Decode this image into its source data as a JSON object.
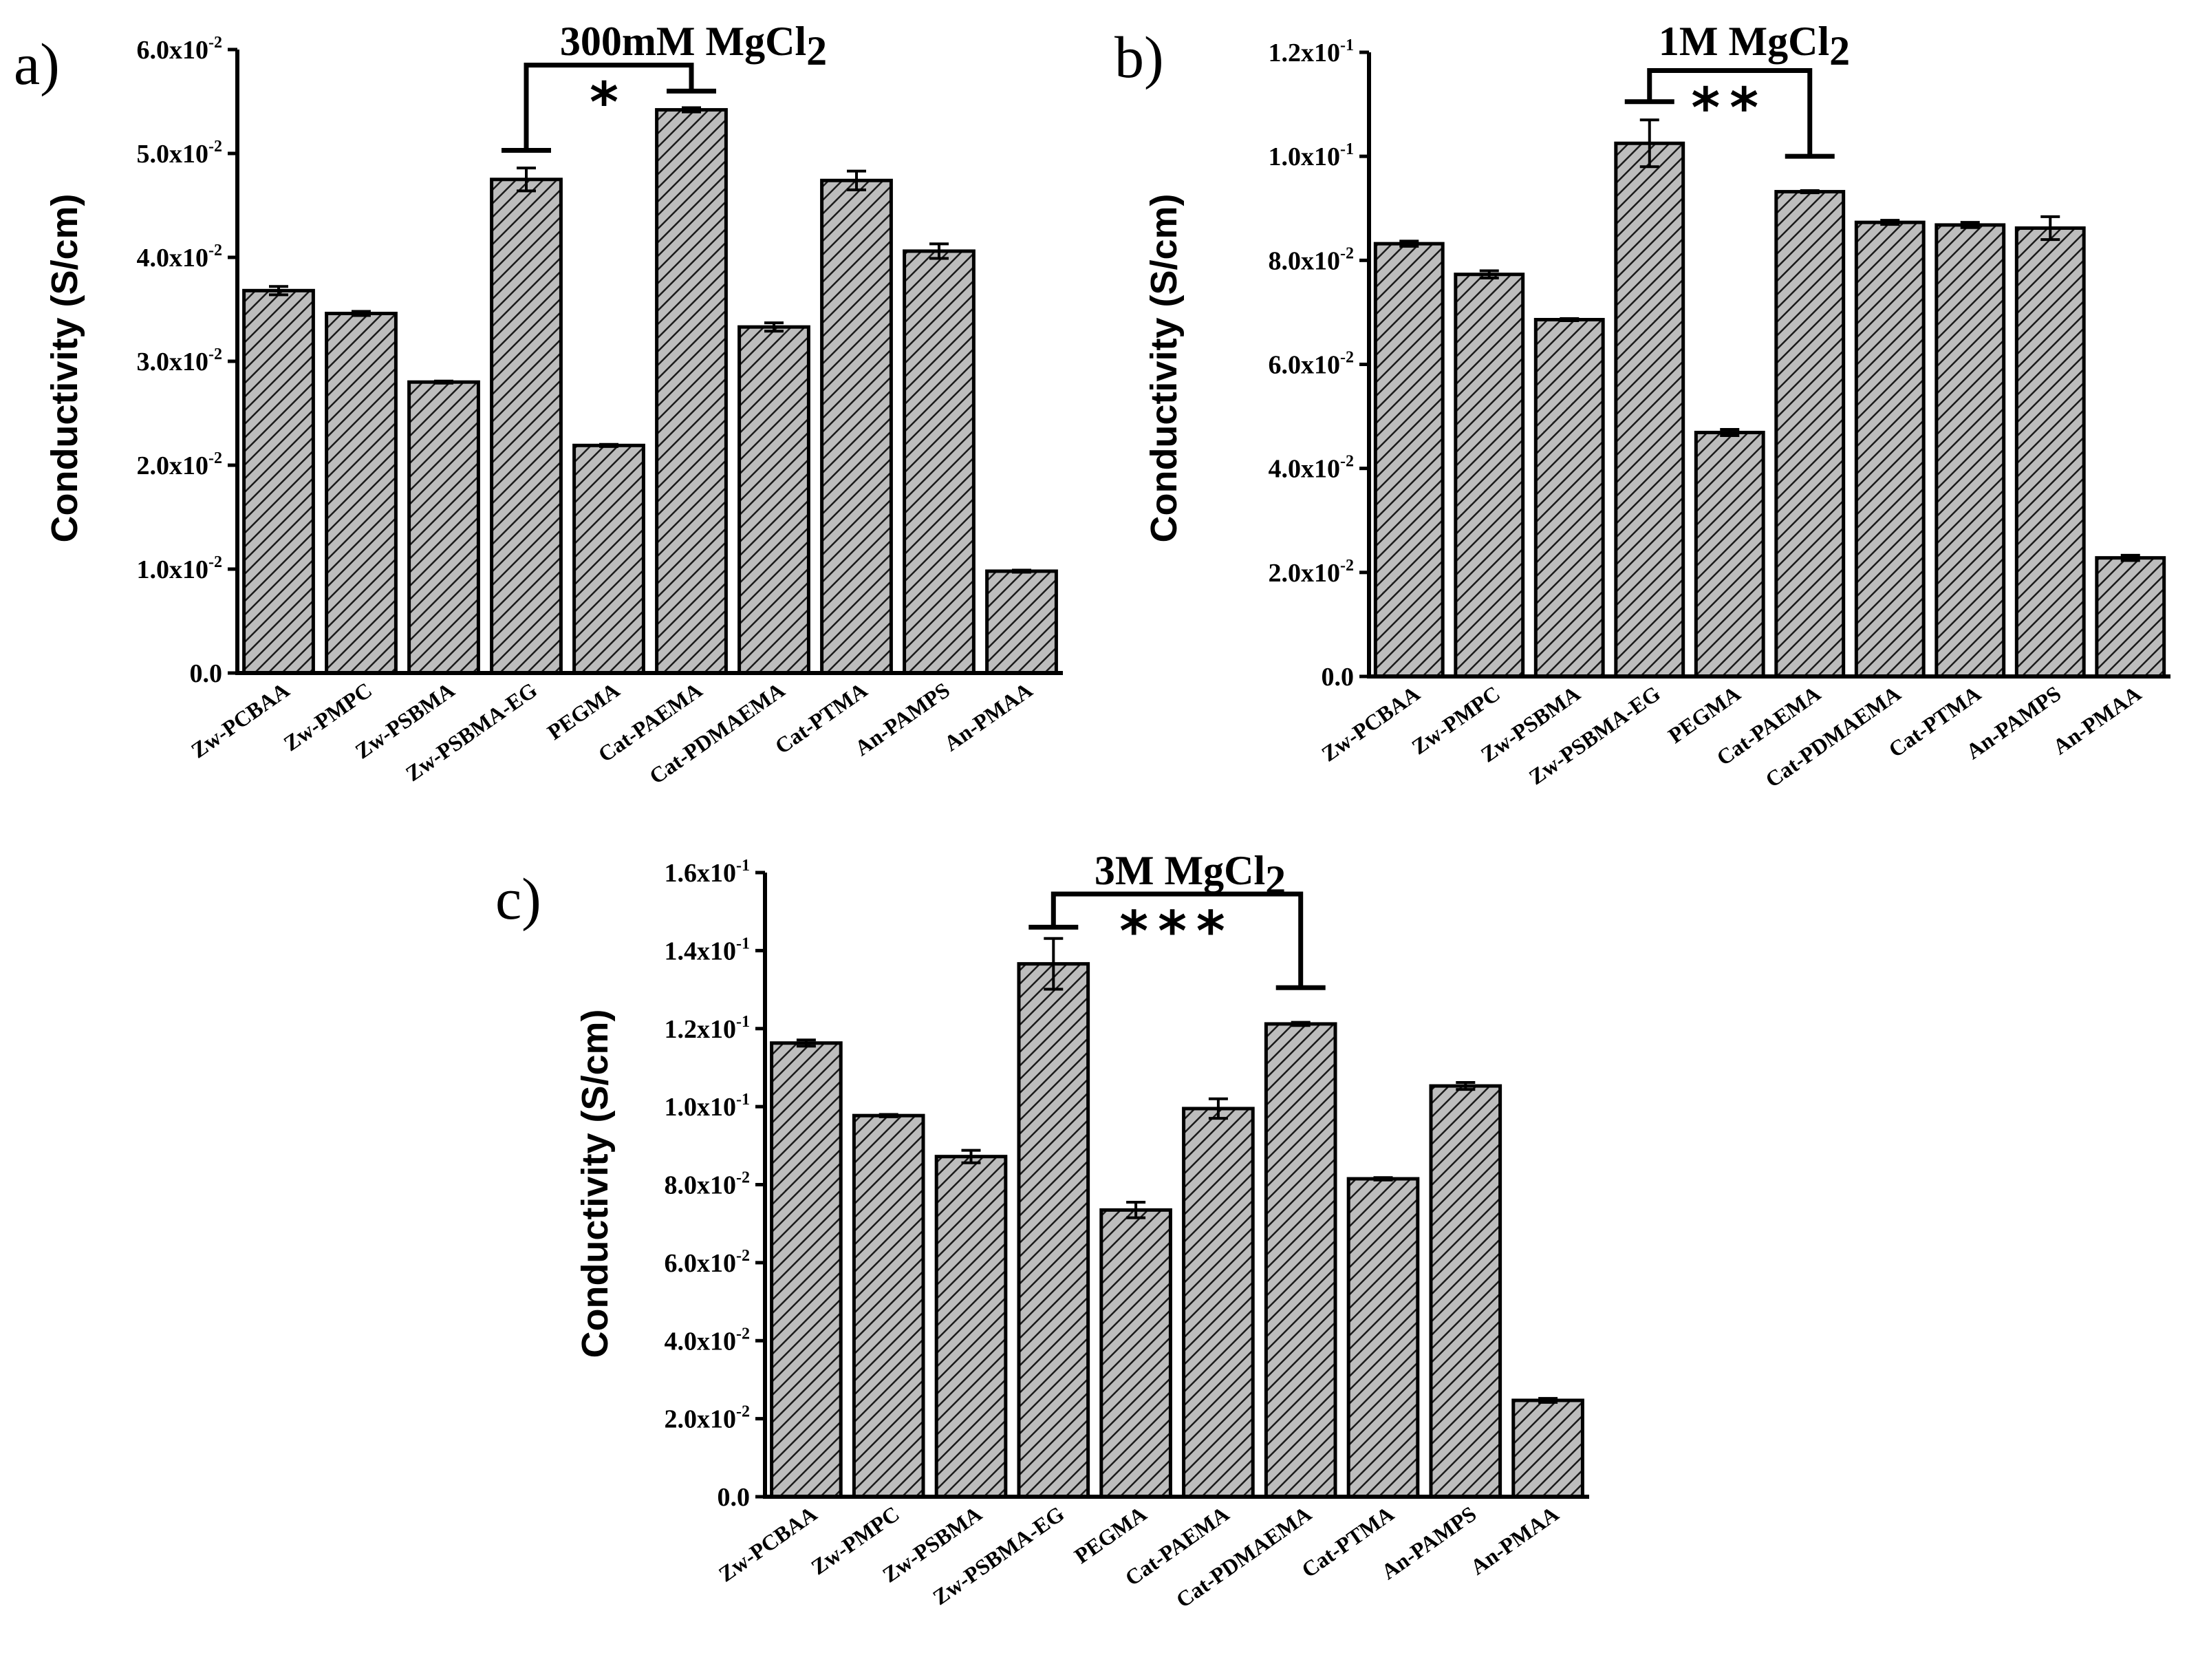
{
  "figure": {
    "colors": {
      "bar_fill_base": "#bdbdbd",
      "hatch": "#1a1a1a",
      "axis": "#000000"
    }
  },
  "chart_data": [
    {
      "panel": "a)",
      "type": "bar",
      "title": "300mM MgCl",
      "title_subscript": "2",
      "ylabel": "Conductivity (S/cm)",
      "xlabel": "",
      "categories": [
        "Zw-PCBAA",
        "Zw-PMPC",
        "Zw-PSBMA",
        "Zw-PSBMA-EG",
        "PEGMA",
        "Cat-PAEMA",
        "Cat-PDMAEMA",
        "Cat-PTMA",
        "An-PAMPS",
        "An-PMAA"
      ],
      "values": [
        0.0368,
        0.0346,
        0.028,
        0.0475,
        0.0219,
        0.0542,
        0.0333,
        0.0474,
        0.0406,
        0.0098
      ],
      "errors": [
        0.0004,
        0.0002,
        0.0001,
        0.0011,
        0.0001,
        0.0002,
        0.0004,
        0.0009,
        0.0007,
        0.0001
      ],
      "ylim": [
        0,
        0.06
      ],
      "yticks": [
        {
          "mant": "0.0",
          "exp": ""
        },
        {
          "mant": "1.0x10",
          "exp": "-2"
        },
        {
          "mant": "2.0x10",
          "exp": "-2"
        },
        {
          "mant": "3.0x10",
          "exp": "-2"
        },
        {
          "mant": "4.0x10",
          "exp": "-2"
        },
        {
          "mant": "5.0x10",
          "exp": "-2"
        },
        {
          "mant": "6.0x10",
          "exp": "-2"
        }
      ],
      "significance": {
        "from": 3,
        "to": 5,
        "label": "*",
        "left_cap": 0.0503,
        "right_cap": 0.056,
        "top": 0.0585
      }
    },
    {
      "panel": "b)",
      "type": "bar",
      "title": "1M MgCl",
      "title_subscript": "2",
      "ylabel": "Conductivity (S/cm)",
      "xlabel": "",
      "categories": [
        "Zw-PCBAA",
        "Zw-PMPC",
        "Zw-PSBMA",
        "Zw-PSBMA-EG",
        "PEGMA",
        "Cat-PAEMA",
        "Cat-PDMAEMA",
        "Cat-PTMA",
        "An-PAMPS",
        "An-PMAA"
      ],
      "values": [
        0.0832,
        0.0773,
        0.0686,
        0.1025,
        0.0469,
        0.0932,
        0.0873,
        0.0868,
        0.0862,
        0.0228
      ],
      "errors": [
        0.0005,
        0.0007,
        0.0002,
        0.0045,
        0.0006,
        0.0002,
        0.0004,
        0.0005,
        0.0022,
        0.0005
      ],
      "ylim": [
        0,
        0.12
      ],
      "yticks": [
        {
          "mant": "0.0",
          "exp": ""
        },
        {
          "mant": "2.0x10",
          "exp": "-2"
        },
        {
          "mant": "4.0x10",
          "exp": "-2"
        },
        {
          "mant": "6.0x10",
          "exp": "-2"
        },
        {
          "mant": "8.0x10",
          "exp": "-2"
        },
        {
          "mant": "1.0x10",
          "exp": "-1"
        },
        {
          "mant": "1.2x10",
          "exp": "-1"
        }
      ],
      "significance": {
        "from": 3,
        "to": 5,
        "label": "**",
        "left_cap": 0.1105,
        "right_cap": 0.1,
        "top": 0.1165
      }
    },
    {
      "panel": "c)",
      "type": "bar",
      "title": "3M MgCl",
      "title_subscript": "2",
      "ylabel": "Conductivity (S/cm)",
      "xlabel": "",
      "categories": [
        "Zw-PCBAA",
        "Zw-PMPC",
        "Zw-PSBMA",
        "Zw-PSBMA-EG",
        "PEGMA",
        "Cat-PAEMA",
        "Cat-PDMAEMA",
        "Cat-PTMA",
        "An-PAMPS",
        "An-PMAA"
      ],
      "values": [
        0.1163,
        0.0977,
        0.0872,
        0.1366,
        0.0735,
        0.0995,
        0.1212,
        0.0815,
        0.1053,
        0.0247
      ],
      "errors": [
        0.0008,
        0.0003,
        0.0016,
        0.0065,
        0.002,
        0.0025,
        0.0004,
        0.0003,
        0.0009,
        0.0005
      ],
      "ylim": [
        0,
        0.16
      ],
      "yticks": [
        {
          "mant": "0.0",
          "exp": ""
        },
        {
          "mant": "2.0x10",
          "exp": "-2"
        },
        {
          "mant": "4.0x10",
          "exp": "-2"
        },
        {
          "mant": "6.0x10",
          "exp": "-2"
        },
        {
          "mant": "8.0x10",
          "exp": "-2"
        },
        {
          "mant": "1.0x10",
          "exp": "-1"
        },
        {
          "mant": "1.2x10",
          "exp": "-1"
        },
        {
          "mant": "1.4x10",
          "exp": "-1"
        },
        {
          "mant": "1.6x10",
          "exp": "-1"
        }
      ],
      "significance": {
        "from": 3,
        "to": 6,
        "label": "***",
        "left_cap": 0.146,
        "right_cap": 0.1305,
        "top": 0.1545
      }
    }
  ]
}
